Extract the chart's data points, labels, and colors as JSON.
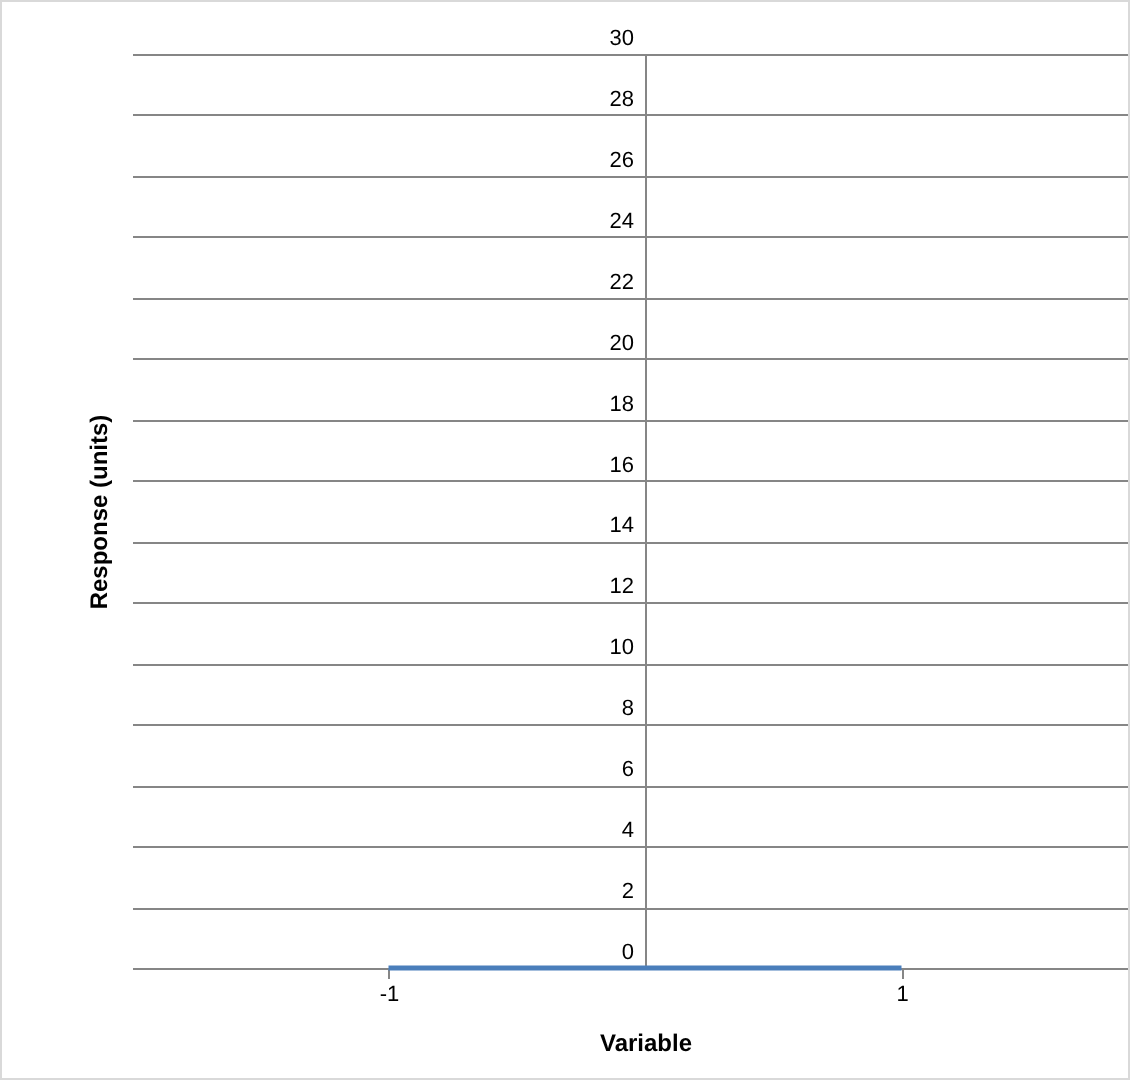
{
  "chart_data": {
    "type": "line",
    "xlabel": "Variable",
    "ylabel": "Response (units)",
    "categories": [
      "-1",
      "1"
    ],
    "series": [
      {
        "color": "#4a7ebb",
        "values": [
          0,
          0
        ]
      }
    ],
    "ylim": [
      0,
      30
    ],
    "yticks": [
      0,
      2,
      4,
      6,
      8,
      10,
      12,
      14,
      16,
      18,
      20,
      22,
      24,
      26,
      28,
      30
    ],
    "grid": "y",
    "marker": "none",
    "line_style": "solid"
  }
}
